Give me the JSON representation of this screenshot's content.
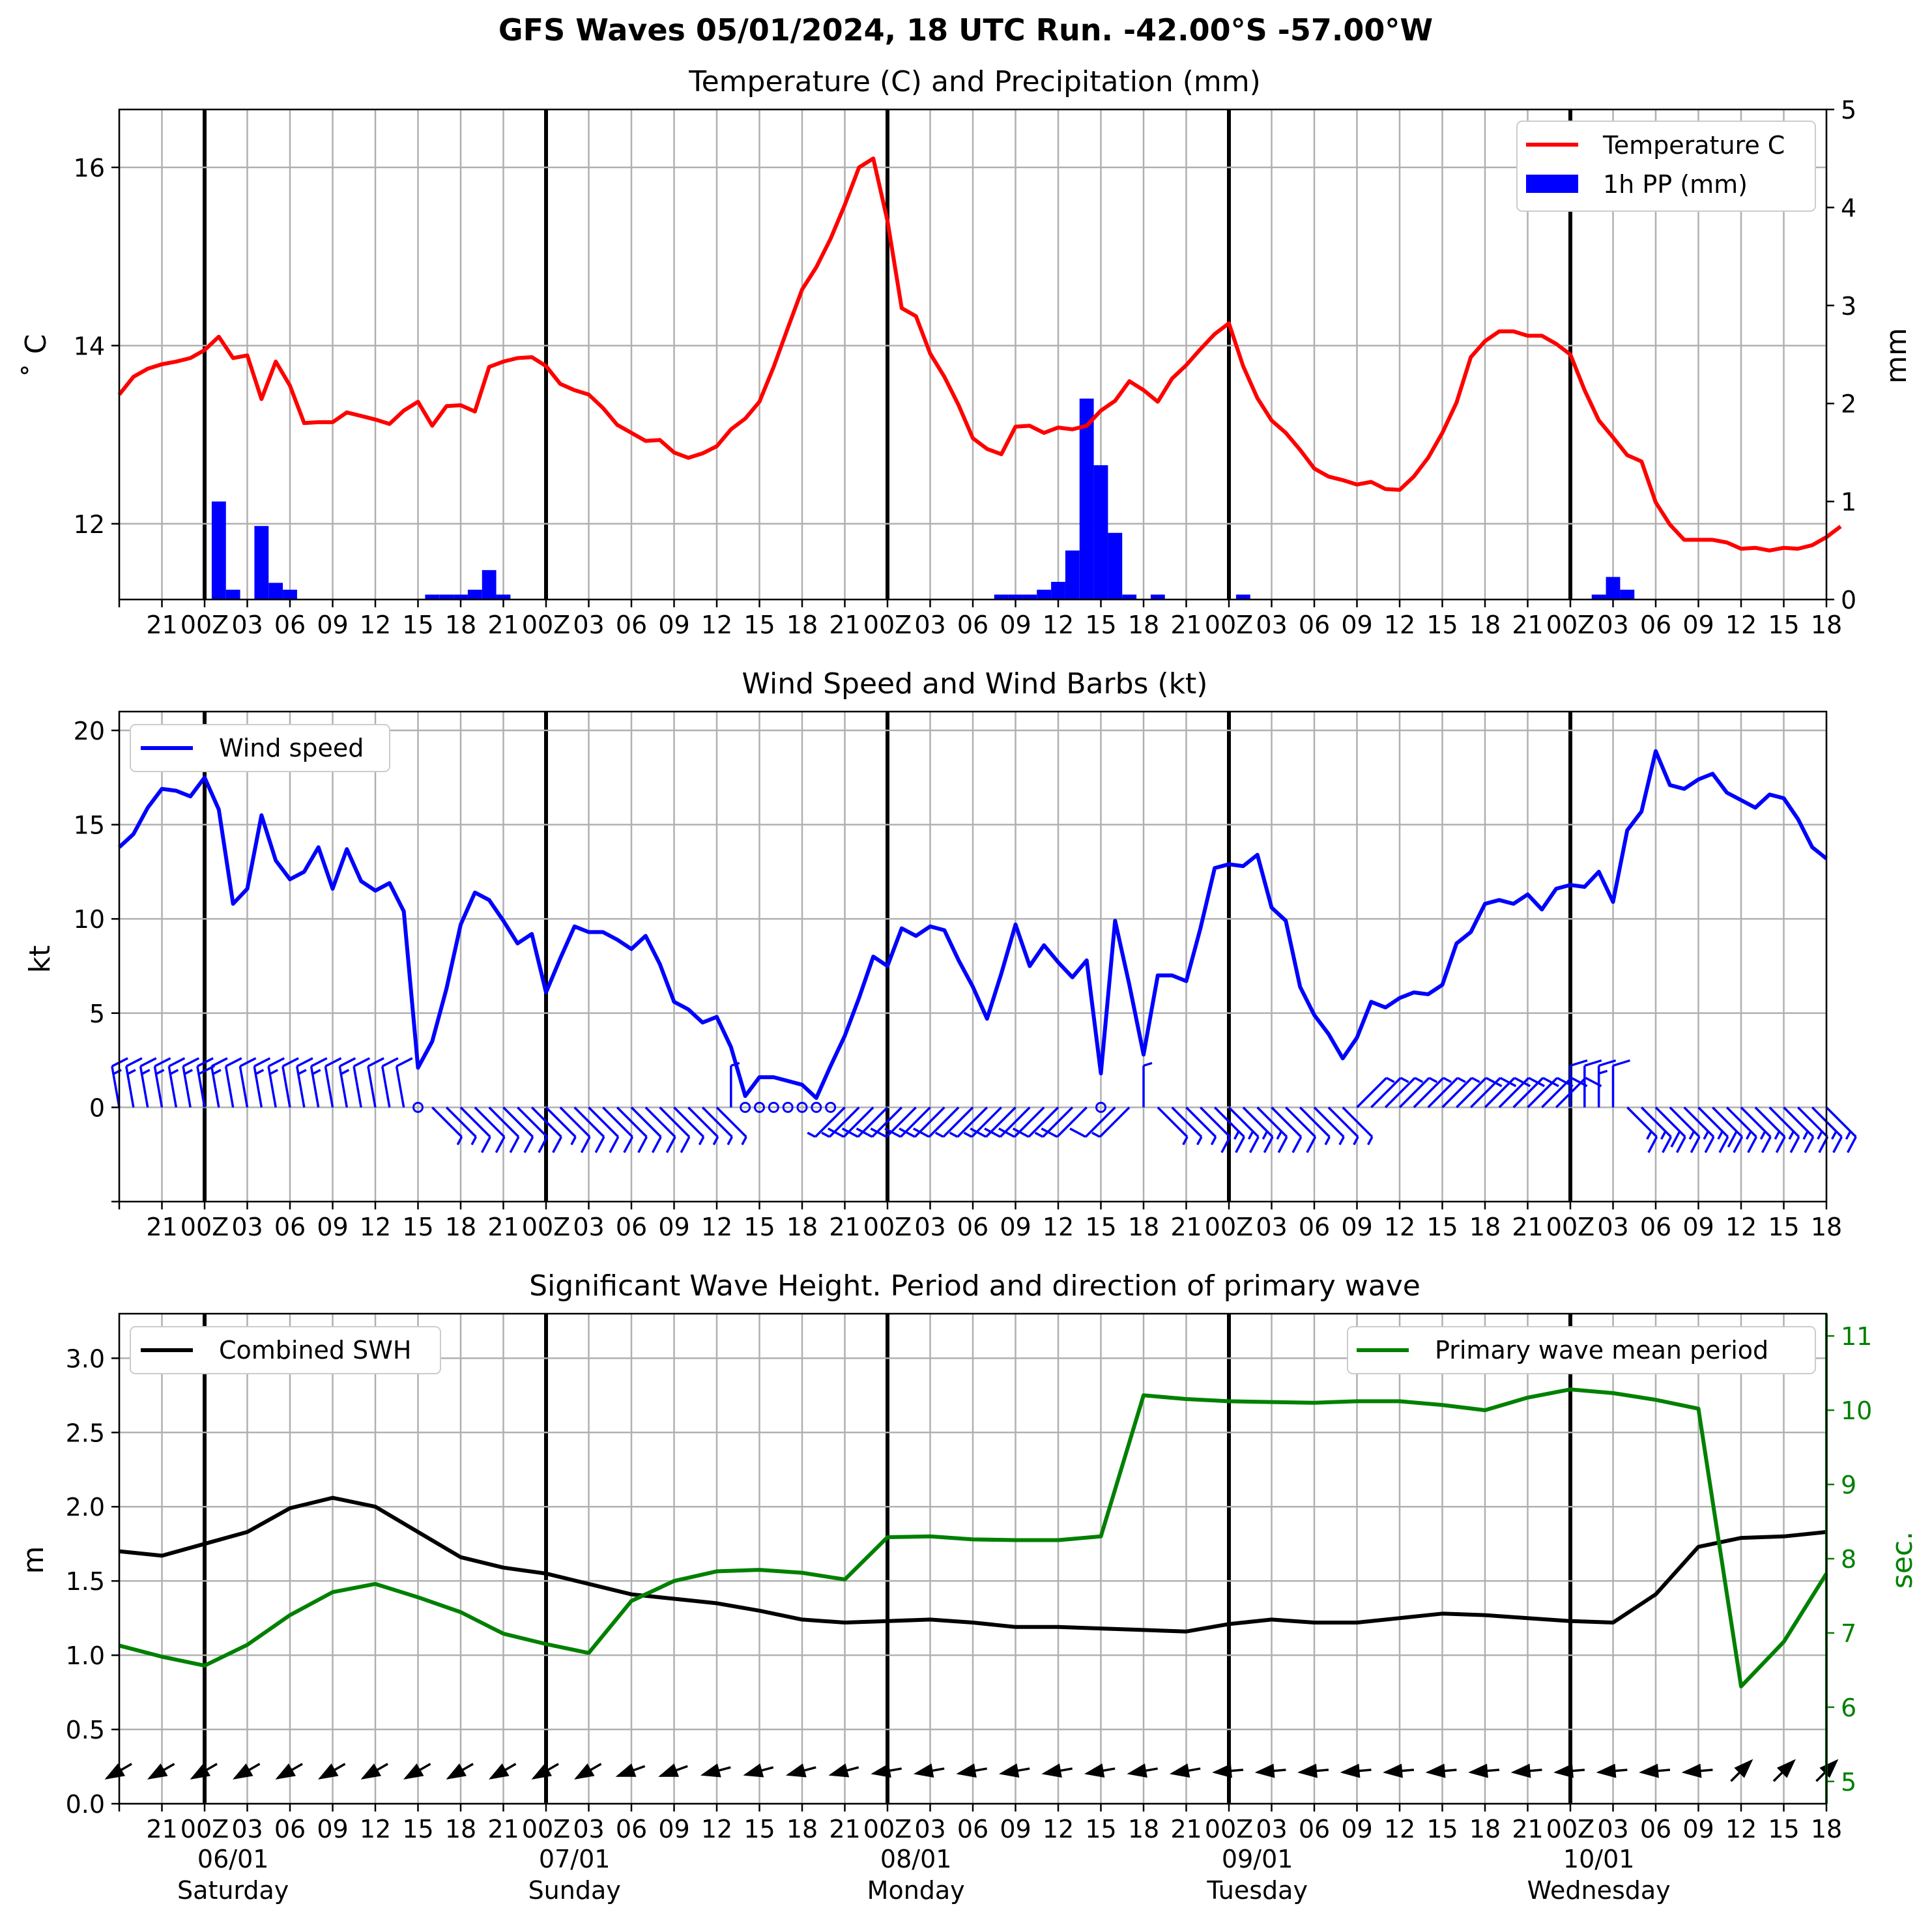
{
  "suptitle": "GFS Waves 05/01/2024, 18 UTC Run. -42.00°S -57.00°W",
  "time_axis": {
    "hours_per_tick": 3,
    "n_steps": 120,
    "tick_labels": [
      "",
      "21",
      "00Z",
      "03",
      "06",
      "09",
      "12",
      "15",
      "18",
      "21",
      "00Z",
      "03",
      "06",
      "09",
      "12",
      "15",
      "18",
      "21",
      "00Z",
      "03",
      "06",
      "09",
      "12",
      "15",
      "18",
      "21",
      "00Z",
      "03",
      "06",
      "09",
      "12",
      "15",
      "18",
      "21",
      "00Z",
      "03",
      "06",
      "09",
      "12",
      "15",
      "18"
    ],
    "day_labels": [
      {
        "step": 8,
        "date": "06/01",
        "day": "Saturday"
      },
      {
        "step": 32,
        "date": "07/01",
        "day": "Sunday"
      },
      {
        "step": 56,
        "date": "08/01",
        "day": "Monday"
      },
      {
        "step": 80,
        "date": "09/01",
        "day": "Tuesday"
      },
      {
        "step": 104,
        "date": "10/01",
        "day": "Wednesday"
      }
    ],
    "midnight_steps": [
      6,
      30,
      54,
      78,
      102
    ]
  },
  "chart_data": [
    {
      "type": "line",
      "title": "Temperature (C) and Precipitation (mm)",
      "ylabel": "$^\\circ$C",
      "ylabel_display": "˚ C",
      "y2label": "mm",
      "ylim": [
        11.15,
        16.65
      ],
      "y2lim": [
        0,
        5
      ],
      "yticks": [
        12,
        14,
        16
      ],
      "y2ticks": [
        0,
        1,
        2,
        3,
        4,
        5
      ],
      "legend_position": "upper right",
      "colors": {
        "temperature": "#ff0000",
        "precip": "#0000ff"
      },
      "series": [
        {
          "name": "Temperature C",
          "values": [
            13.45,
            13.65,
            13.74,
            13.79,
            13.82,
            13.86,
            13.95,
            14.1,
            13.86,
            13.89,
            13.4,
            13.82,
            13.55,
            13.13,
            13.14,
            13.14,
            13.25,
            13.21,
            13.17,
            13.12,
            13.27,
            13.37,
            13.1,
            13.32,
            13.33,
            13.26,
            13.76,
            13.82,
            13.86,
            13.87,
            13.77,
            13.57,
            13.5,
            13.45,
            13.3,
            13.11,
            13.02,
            12.93,
            12.94,
            12.8,
            12.74,
            12.79,
            12.87,
            13.06,
            13.18,
            13.37,
            13.76,
            14.2,
            14.63,
            14.88,
            15.2,
            15.58,
            16.0,
            16.1,
            15.4,
            14.42,
            14.33,
            13.91,
            13.65,
            13.33,
            12.96,
            12.84,
            12.78,
            13.09,
            13.1,
            13.02,
            13.08,
            13.06,
            13.1,
            13.27,
            13.38,
            13.6,
            13.5,
            13.37,
            13.63,
            13.78,
            13.96,
            14.13,
            14.25,
            13.77,
            13.41,
            13.16,
            13.02,
            12.83,
            12.62,
            12.53,
            12.49,
            12.44,
            12.47,
            12.39,
            12.38,
            12.53,
            12.74,
            13.02,
            13.36,
            13.87,
            14.05,
            14.16,
            14.16,
            14.11,
            14.11,
            14.02,
            13.9,
            13.5,
            13.16,
            12.97,
            12.77,
            12.7,
            12.24,
            11.99,
            11.82,
            11.82,
            11.82,
            11.79,
            11.72,
            11.73,
            11.7,
            11.73,
            11.72,
            11.76,
            11.85,
            11.97
          ]
        },
        {
          "name": "1h PP (mm)",
          "values": [
            0,
            0,
            0,
            0,
            0,
            0,
            0,
            1.0,
            0.1,
            0,
            0.75,
            0.17,
            0.1,
            0,
            0,
            0,
            0,
            0,
            0,
            0,
            0,
            0,
            0.05,
            0.05,
            0.05,
            0.1,
            0.3,
            0.05,
            0,
            0,
            0,
            0,
            0,
            0,
            0,
            0,
            0,
            0,
            0,
            0,
            0,
            0,
            0,
            0,
            0,
            0,
            0,
            0,
            0,
            0,
            0,
            0,
            0,
            0,
            0,
            0,
            0,
            0,
            0,
            0,
            0,
            0,
            0.05,
            0.05,
            0.05,
            0.1,
            0.18,
            0.5,
            2.05,
            1.37,
            0.68,
            0.05,
            0,
            0.05,
            0,
            0,
            0,
            0,
            0,
            0.05,
            0,
            0,
            0,
            0,
            0,
            0,
            0,
            0,
            0,
            0,
            0,
            0,
            0,
            0,
            0,
            0,
            0,
            0,
            0,
            0,
            0,
            0,
            0,
            0,
            0.05,
            0.23,
            0.1,
            0,
            0,
            0,
            0,
            0,
            0,
            0,
            0,
            0,
            0,
            0,
            0,
            0,
            0,
            0
          ]
        }
      ]
    },
    {
      "type": "line",
      "title": "Wind Speed and Wind Barbs (kt)",
      "ylabel": "kt",
      "ylim": [
        -5,
        21
      ],
      "yticks": [
        0,
        5,
        10,
        15,
        20
      ],
      "legend_position": "upper left",
      "colors": {
        "wind": "#0000ff"
      },
      "series": [
        {
          "name": "Wind speed",
          "values": [
            13.8,
            14.5,
            15.9,
            16.9,
            16.8,
            16.5,
            17.5,
            15.8,
            10.8,
            11.6,
            15.5,
            13.1,
            12.1,
            12.5,
            13.8,
            11.6,
            13.7,
            12.0,
            11.5,
            11.9,
            10.4,
            2.1,
            3.5,
            6.3,
            9.7,
            11.4,
            11.0,
            9.9,
            8.7,
            9.2,
            6.1,
            7.9,
            9.6,
            9.3,
            9.3,
            8.9,
            8.4,
            9.1,
            7.6,
            5.6,
            5.2,
            4.5,
            4.8,
            3.2,
            0.6,
            1.6,
            1.6,
            1.4,
            1.2,
            0.5,
            2.2,
            3.8,
            5.8,
            8.0,
            7.5,
            9.5,
            9.1,
            9.6,
            9.4,
            7.8,
            6.4,
            4.7,
            7.1,
            9.7,
            7.5,
            8.6,
            7.7,
            6.9,
            7.8,
            1.8,
            9.9,
            6.5,
            2.8,
            7.0,
            7.0,
            6.7,
            9.5,
            12.7,
            12.9,
            12.8,
            13.4,
            10.6,
            9.9,
            6.4,
            4.9,
            3.9,
            2.6,
            3.7,
            5.6,
            5.3,
            5.8,
            6.1,
            6.0,
            6.5,
            8.7,
            9.3,
            10.8,
            11.0,
            10.8,
            11.3,
            10.5,
            11.6,
            11.8,
            11.7,
            12.5,
            10.9,
            14.7,
            15.7,
            18.9,
            17.1,
            16.9,
            17.4,
            17.7,
            16.7,
            16.3,
            15.9,
            16.6,
            16.4,
            15.3,
            13.8,
            13.2
          ]
        }
      ],
      "barb_directions_deg": [
        350,
        350,
        350,
        350,
        350,
        350,
        350,
        350,
        350,
        350,
        350,
        350,
        350,
        350,
        350,
        350,
        350,
        350,
        350,
        350,
        350,
        0,
        135,
        135,
        135,
        135,
        135,
        135,
        135,
        135,
        135,
        135,
        135,
        135,
        135,
        135,
        135,
        135,
        135,
        135,
        135,
        135,
        135,
        0,
        0,
        0,
        0,
        0,
        0,
        0,
        225,
        225,
        225,
        225,
        225,
        225,
        225,
        225,
        225,
        225,
        225,
        225,
        225,
        225,
        225,
        225,
        225,
        225,
        225,
        0,
        225,
        225,
        0,
        135,
        135,
        135,
        135,
        135,
        135,
        135,
        135,
        135,
        135,
        135,
        135,
        135,
        135,
        45,
        45,
        45,
        45,
        45,
        45,
        45,
        45,
        45,
        45,
        45,
        45,
        45,
        45,
        45,
        0,
        0,
        0,
        0,
        135,
        135,
        135,
        135,
        135,
        135,
        135,
        135,
        135,
        135,
        135,
        135,
        135,
        135,
        135,
        135,
        135
      ]
    },
    {
      "type": "line",
      "title": "Significant Wave Height. Period and direction of primary wave",
      "ylabel": "m",
      "y2label": "sec.",
      "ylim": [
        0,
        3.3
      ],
      "y2lim": [
        4.7,
        11.3
      ],
      "yticks": [
        0.0,
        0.5,
        1.0,
        1.5,
        2.0,
        2.5,
        3.0
      ],
      "y2ticks": [
        5,
        6,
        7,
        8,
        9,
        10,
        11
      ],
      "legend_positions": {
        "swh": "upper left",
        "period": "upper right"
      },
      "colors": {
        "swh": "#000000",
        "period": "#008000"
      },
      "x_steps": [
        0,
        3,
        6,
        9,
        12,
        15,
        18,
        21,
        24,
        27,
        30,
        33,
        36,
        39,
        42,
        45,
        48,
        51,
        54,
        57,
        60,
        63,
        66,
        69,
        72,
        75,
        78,
        81,
        84,
        87,
        90,
        93,
        96,
        99,
        102,
        105,
        108,
        111,
        114,
        117,
        120
      ],
      "series": [
        {
          "name": "Combined SWH",
          "values": [
            1.7,
            1.67,
            1.75,
            1.83,
            1.99,
            2.06,
            2.0,
            1.83,
            1.66,
            1.59,
            1.55,
            1.48,
            1.41,
            1.38,
            1.35,
            1.3,
            1.24,
            1.22,
            1.23,
            1.24,
            1.22,
            1.19,
            1.19,
            1.18,
            1.17,
            1.16,
            1.21,
            1.24,
            1.22,
            1.22,
            1.25,
            1.28,
            1.27,
            1.25,
            1.23,
            1.22,
            1.41,
            1.73,
            1.79,
            1.8,
            1.83
          ]
        },
        {
          "name": "Primary wave mean period",
          "values": [
            6.83,
            6.68,
            6.56,
            6.84,
            7.24,
            7.55,
            7.66,
            7.48,
            7.28,
            6.99,
            6.85,
            6.73,
            7.43,
            7.7,
            7.83,
            7.85,
            7.81,
            7.72,
            8.29,
            8.3,
            8.26,
            8.25,
            8.25,
            8.3,
            10.2,
            10.15,
            10.12,
            10.11,
            10.1,
            10.12,
            10.12,
            10.07,
            10.0,
            10.17,
            10.28,
            10.23,
            10.14,
            10.02,
            6.28,
            6.88,
            7.8
          ]
        }
      ],
      "wave_direction_deg": [
        60,
        60,
        60,
        60,
        60,
        60,
        60,
        60,
        60,
        60,
        60,
        60,
        70,
        70,
        75,
        75,
        75,
        75,
        80,
        80,
        80,
        80,
        80,
        80,
        80,
        80,
        85,
        85,
        85,
        85,
        85,
        85,
        85,
        85,
        85,
        85,
        85,
        85,
        225,
        225,
        225
      ]
    }
  ]
}
